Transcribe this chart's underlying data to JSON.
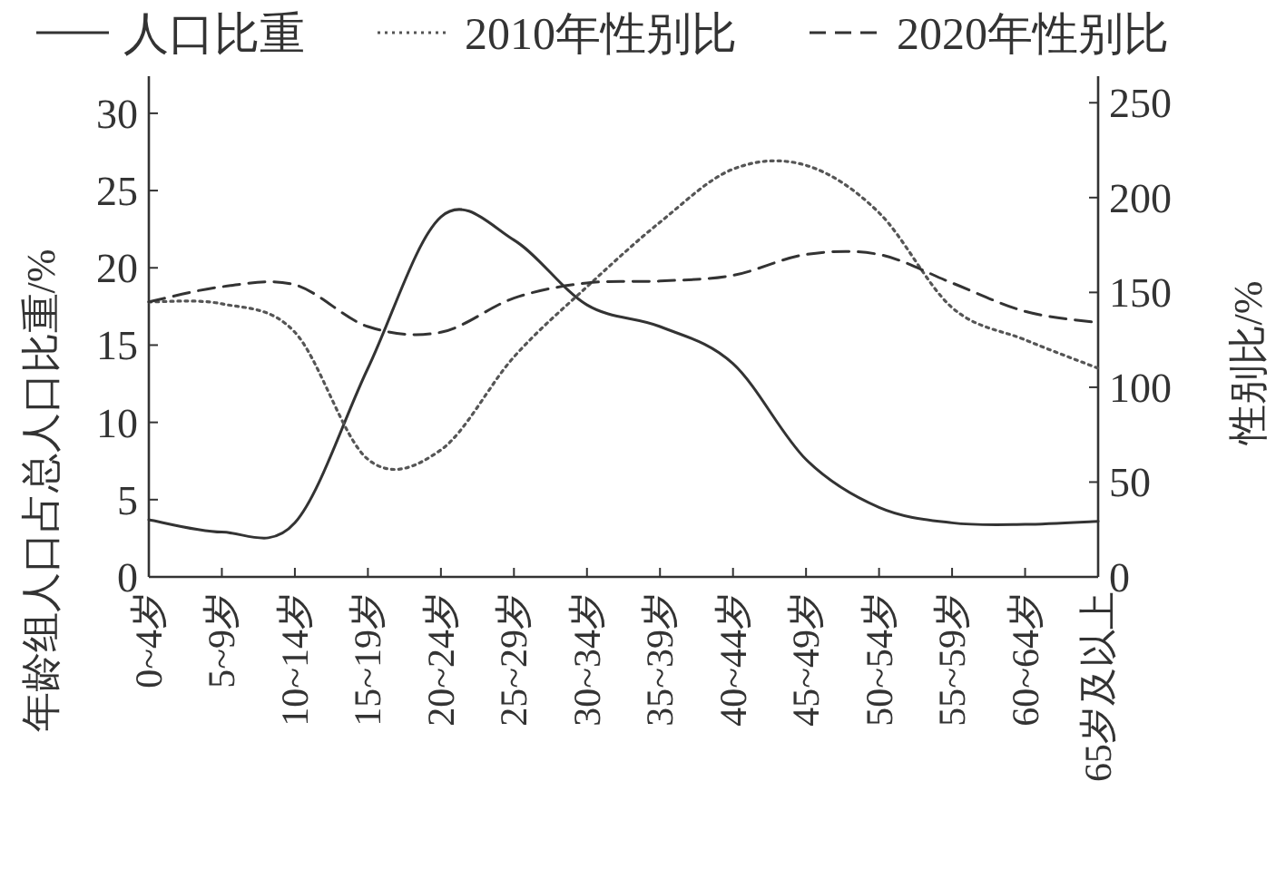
{
  "chart_data": {
    "type": "line",
    "categories": [
      "0~4岁",
      "5~9岁",
      "10~14岁",
      "15~19岁",
      "20~24岁",
      "25~29岁",
      "30~34岁",
      "35~39岁",
      "40~44岁",
      "45~49岁",
      "50~54岁",
      "55~59岁",
      "60~64岁",
      "65岁及以上"
    ],
    "series": [
      {
        "name": "人口比重",
        "color": "#333333",
        "line_style": "solid",
        "values": [
          3.7,
          2.9,
          3.5,
          13.5,
          23.3,
          21.8,
          17.6,
          16.2,
          13.8,
          7.6,
          4.5,
          3.5,
          3.4,
          3.6
        ]
      },
      {
        "name": "2010年性别比",
        "color": "#555555",
        "line_style": "dotted",
        "axis": "y2",
        "values": [
          145,
          144,
          129,
          62,
          67,
          116,
          153,
          187,
          215,
          217,
          192,
          142,
          125,
          110
        ]
      },
      {
        "name": "2020年性别比",
        "color": "#333333",
        "line_style": "dashed",
        "axis": "y2",
        "values": [
          145,
          153,
          154,
          132,
          129,
          147,
          155,
          156,
          159,
          170,
          170,
          155,
          140,
          134
        ]
      }
    ],
    "ylabel": "年龄组人口占总人口比重/%",
    "y2label": "性别比/%",
    "ylim": [
      0,
      32.4
    ],
    "yticks": [
      0,
      5,
      10,
      15,
      20,
      25,
      30
    ],
    "y2lim": [
      0,
      264
    ],
    "y2ticks": [
      0,
      50,
      100,
      150,
      200,
      250
    ],
    "legend": "top"
  }
}
